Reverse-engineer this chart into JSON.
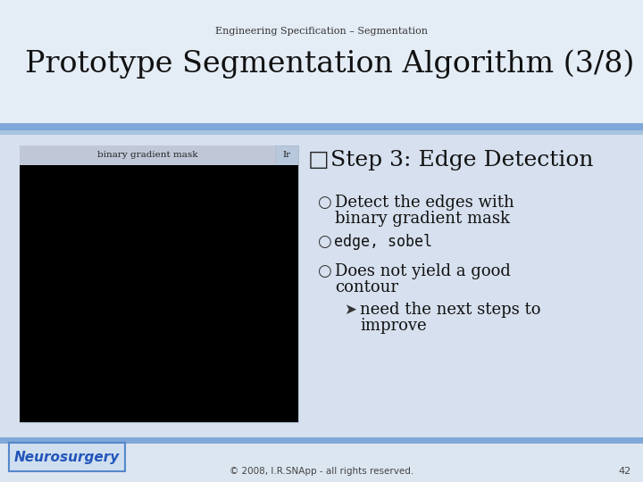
{
  "title_small": "Engineering Specification – Segmentation",
  "title_large": "Prototype Segmentation Algorithm (3/8)",
  "bg_color": "#dce6f1",
  "slide_bg": "#dce6f1",
  "header_bg": "#e8edf5",
  "content_bg": "#d6e0ee",
  "blue_bar_color": "#7fa7d8",
  "blue_bar2_color": "#8ab0dc",
  "step_title": "Step 3: Edge Detection",
  "bullet1_line1": "Detect the edges with",
  "bullet1_line2": "binary gradient mask",
  "bullet2": "edge, sobel",
  "bullet3_line1": "Does not yield a good",
  "bullet3_line2": "contour",
  "sub_bullet": "need the next steps to",
  "sub_bullet2": "improve",
  "footer_text": "© 2008, I.R.SNApp - all rights reserved.",
  "footer_page": "42",
  "neurosurgery_text": "Neurosurgery",
  "image_label": "binary gradient mask",
  "image_label2": "Ir",
  "checkbox": "□",
  "circle": "○",
  "arrow": "➤"
}
